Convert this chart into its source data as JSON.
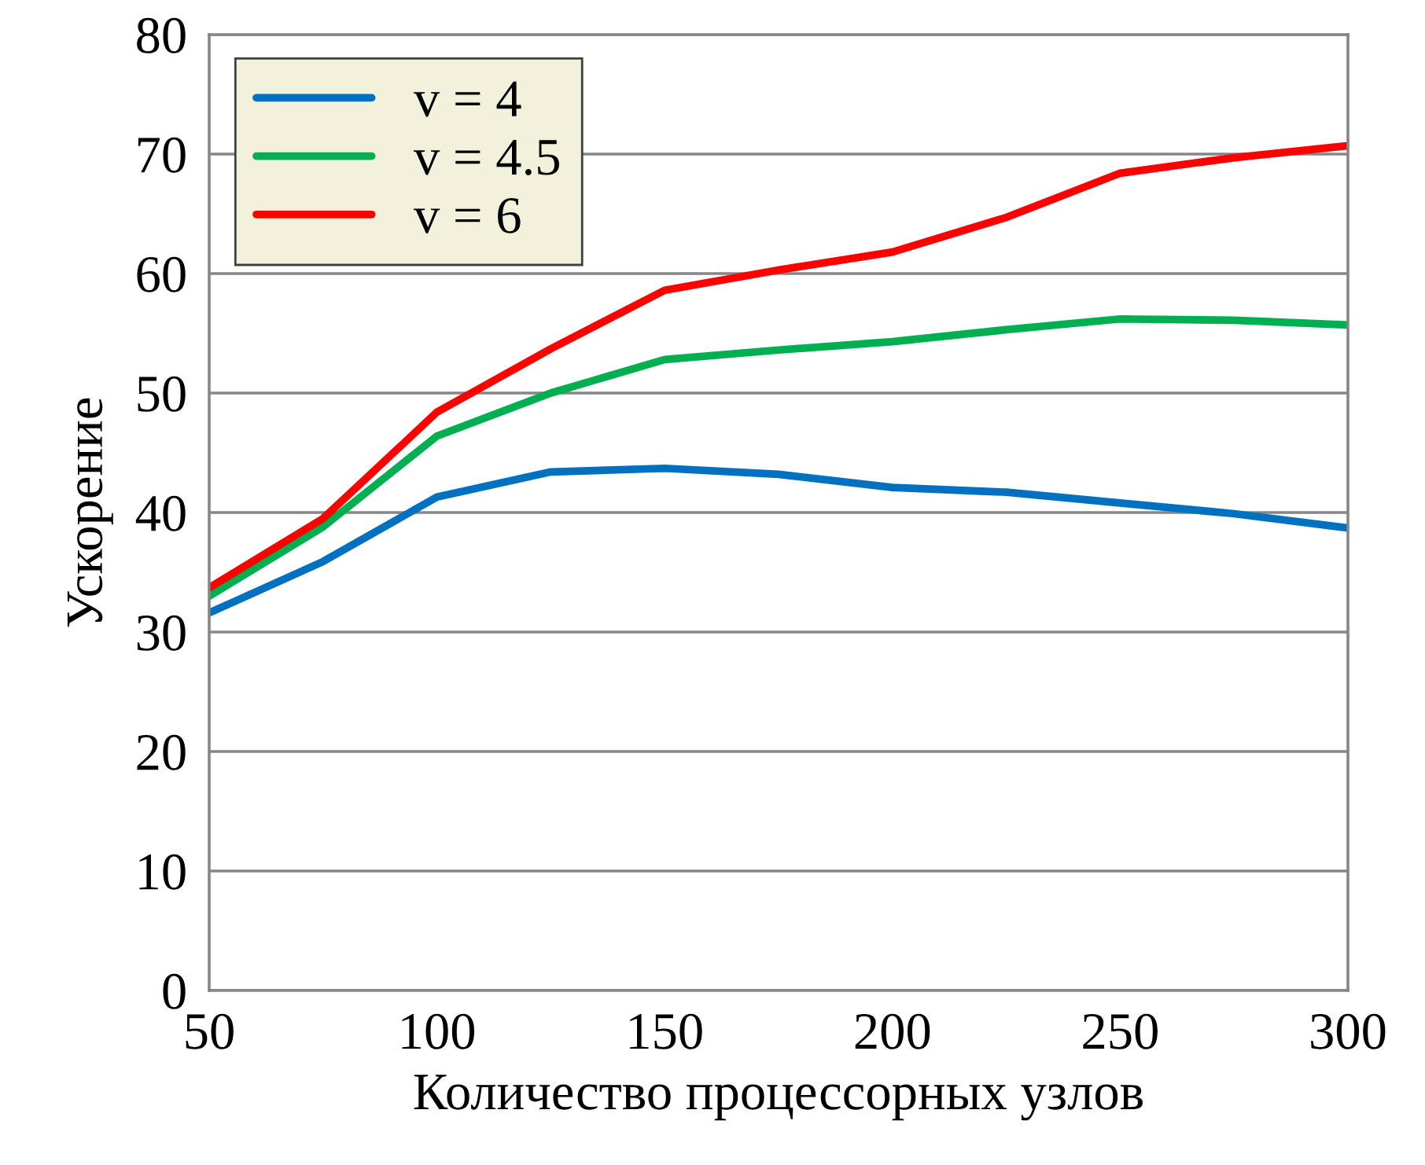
{
  "chart_data": {
    "type": "line",
    "xlabel": "Количество процессорных узлов",
    "ylabel": "Ускорение",
    "x": [
      50,
      75,
      100,
      125,
      150,
      175,
      200,
      225,
      250,
      275,
      300
    ],
    "series": [
      {
        "name": "v = 4",
        "color": "#0070c0",
        "values": [
          31.6,
          35.9,
          41.3,
          43.4,
          43.7,
          43.2,
          42.1,
          41.7,
          40.8,
          39.9,
          38.7
        ]
      },
      {
        "name": "v = 4.5",
        "color": "#00b050",
        "values": [
          33.0,
          38.8,
          46.4,
          50.0,
          52.8,
          53.6,
          54.3,
          55.3,
          56.2,
          56.1,
          55.7
        ]
      },
      {
        "name": "v = 6",
        "color": "#ff0000",
        "values": [
          33.7,
          39.5,
          48.4,
          53.7,
          58.6,
          60.3,
          61.8,
          64.7,
          68.4,
          69.7,
          70.7
        ]
      }
    ],
    "xlim": [
      50,
      300
    ],
    "xticks": [
      50,
      100,
      150,
      200,
      250,
      300
    ],
    "ylim": [
      0,
      80
    ],
    "yticks": [
      0,
      10,
      20,
      30,
      40,
      50,
      60,
      70,
      80
    ],
    "grid": "y",
    "legend": "top left",
    "marker": "none",
    "line_style": "solid"
  }
}
